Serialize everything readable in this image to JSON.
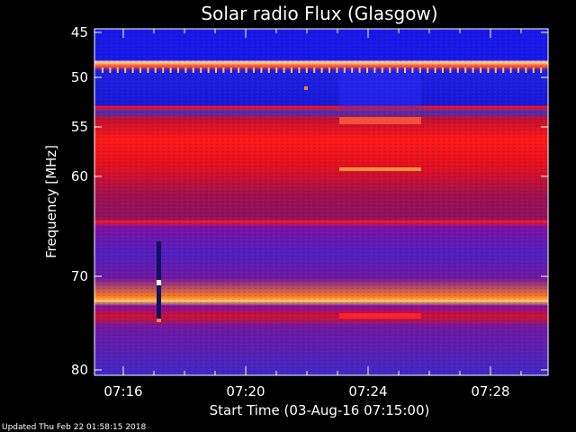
{
  "chart_data": {
    "type": "heatmap",
    "title": "Solar radio Flux (Glasgow)",
    "xlabel": "Start Time (03-Aug-16 07:15:00)",
    "ylabel": "Frequency [MHz]",
    "footer": "Updated Thu Feb 22 01:58:15 2018",
    "x_ticks": [
      "07:16",
      "07:20",
      "07:24",
      "07:28"
    ],
    "y_ticks": [
      "45",
      "50",
      "55",
      "60",
      "70",
      "80"
    ],
    "colors": {
      "background": "#000000",
      "low": "#1010e0",
      "mid": "#a01050",
      "high": "#ff2010",
      "peak": "#ffd060"
    }
  }
}
